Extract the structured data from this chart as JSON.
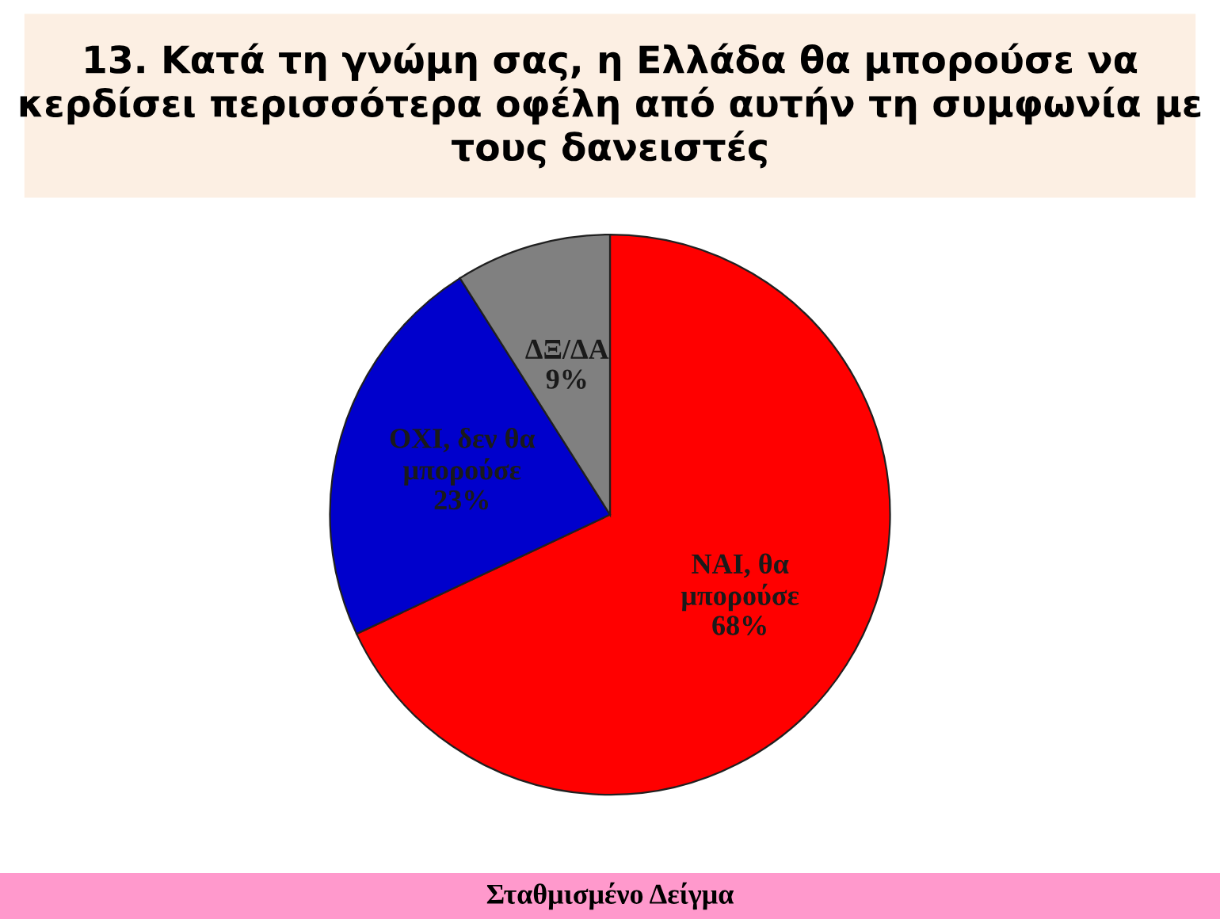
{
  "chart_data": {
    "type": "pie",
    "title": "13. Κατά τη γνώμη σας, η Ελλάδα θα μπορούσε να κερδίσει περισσότερα οφέλη από αυτήν τη συμφωνία με τους δανειστές",
    "categories": [
      "ΝΑΙ, θα\nμπορούσε",
      "ΟΧΙ, δεν θα\nμπορούσε",
      "ΔΞ/ΔΑ"
    ],
    "values": [
      68,
      23,
      9
    ],
    "value_labels": [
      "68%",
      "23%",
      "9%"
    ],
    "colors": [
      "#ff0000",
      "#0000cc",
      "#808080"
    ],
    "annotations": [
      "Σταθμισμένο Δείγμα"
    ]
  }
}
